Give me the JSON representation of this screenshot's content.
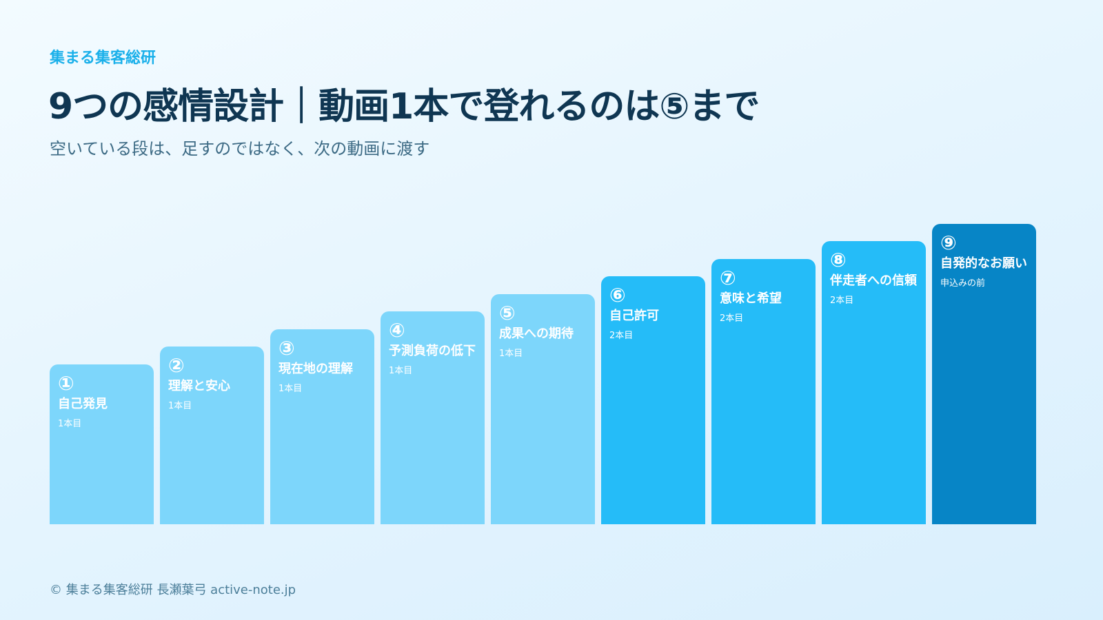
{
  "header": {
    "brand": "集まる集客総研",
    "title": "9つの感情設計｜動画1本で登れるのは⑤まで",
    "subtitle": "空いている段は、足すのではなく、次の動画に渡す"
  },
  "colors": {
    "light": "#7dd6fb",
    "mid": "#25bcf8",
    "dark": "#0785c6",
    "title": "#0f3652",
    "brand": "#1ab0ea"
  },
  "chart_data": {
    "type": "bar",
    "bars": [
      {
        "number": "①",
        "label": "自己発見",
        "note": "1本目",
        "value": 1,
        "tone": "light"
      },
      {
        "number": "②",
        "label": "理解と安心",
        "note": "1本目",
        "value": 2,
        "tone": "light"
      },
      {
        "number": "③",
        "label": "現在地の理解",
        "note": "1本目",
        "value": 3,
        "tone": "light"
      },
      {
        "number": "④",
        "label": "予測負荷の低下",
        "note": "1本目",
        "value": 4,
        "tone": "light"
      },
      {
        "number": "⑤",
        "label": "成果への期待",
        "note": "1本目",
        "value": 5,
        "tone": "light"
      },
      {
        "number": "⑥",
        "label": "自己許可",
        "note": "2本目",
        "value": 6,
        "tone": "mid"
      },
      {
        "number": "⑦",
        "label": "意味と希望",
        "note": "2本目",
        "value": 7,
        "tone": "mid"
      },
      {
        "number": "⑧",
        "label": "伴走者への信頼",
        "note": "2本目",
        "value": 8,
        "tone": "mid"
      },
      {
        "number": "⑨",
        "label": "自発的なお願い",
        "note": "申込みの前",
        "value": 9,
        "tone": "dark"
      }
    ]
  },
  "footer": {
    "text": "© 集まる集客総研 長瀬葉弓 active-note.jp"
  }
}
